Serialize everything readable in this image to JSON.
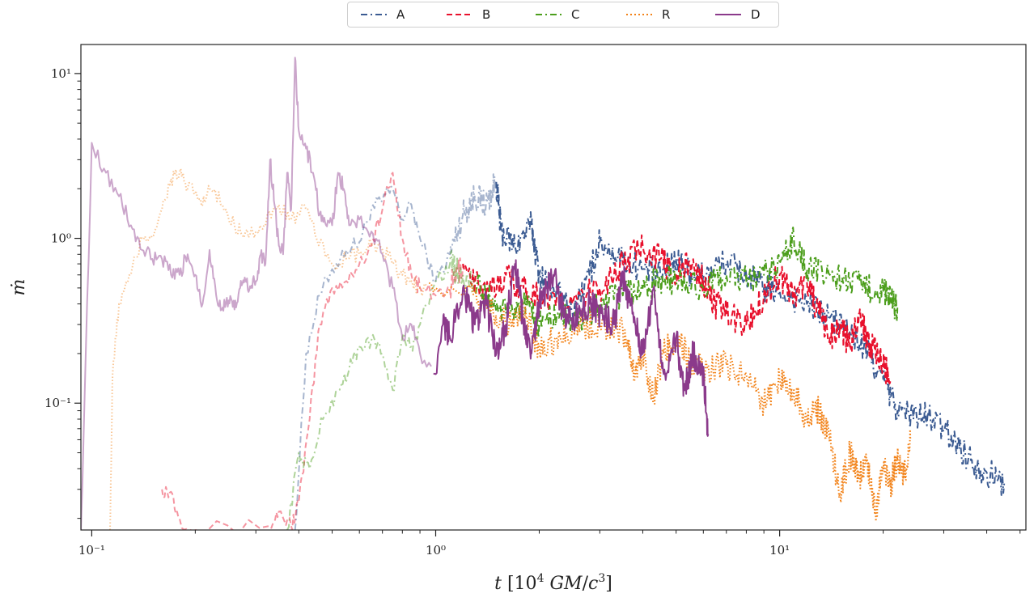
{
  "chart_data": {
    "type": "line",
    "title": "",
    "xlabel": "t [10^4 GM/c^3]",
    "ylabel": "ṁ",
    "x_scale": "log",
    "y_scale": "log",
    "xlim": [
      0.093,
      52
    ],
    "ylim": [
      0.017,
      15
    ],
    "x_major_ticks": [
      0.1,
      1,
      10
    ],
    "x_tick_labels": [
      "10⁻¹",
      "10⁰",
      "10¹"
    ],
    "y_major_ticks": [
      0.1,
      1,
      10
    ],
    "y_tick_labels": [
      "10⁻¹",
      "10⁰",
      "10¹"
    ],
    "grid": false,
    "legend_position": "top-center",
    "series": [
      {
        "name": "A",
        "color": "#3b5b92",
        "dash": "dashdot",
        "faded_until": 1.5,
        "points": [
          [
            0.39,
            0.017
          ],
          [
            0.42,
            0.2
          ],
          [
            0.46,
            0.45
          ],
          [
            0.5,
            0.65
          ],
          [
            0.55,
            0.85
          ],
          [
            0.6,
            0.95
          ],
          [
            0.65,
            1.5
          ],
          [
            0.7,
            1.7
          ],
          [
            0.75,
            2.0
          ],
          [
            0.8,
            1.3
          ],
          [
            0.85,
            1.6
          ],
          [
            0.9,
            1.0
          ],
          [
            1.0,
            0.55
          ],
          [
            1.1,
            0.8
          ],
          [
            1.2,
            1.4
          ],
          [
            1.3,
            1.8
          ],
          [
            1.4,
            1.6
          ],
          [
            1.5,
            2.2
          ],
          [
            1.55,
            1.1
          ],
          [
            1.7,
            0.9
          ],
          [
            1.9,
            1.2
          ],
          [
            2.0,
            0.6
          ],
          [
            2.2,
            0.5
          ],
          [
            2.5,
            0.35
          ],
          [
            2.8,
            0.6
          ],
          [
            3.0,
            0.95
          ],
          [
            3.5,
            0.75
          ],
          [
            4.0,
            0.65
          ],
          [
            4.5,
            0.6
          ],
          [
            5.0,
            0.75
          ],
          [
            5.5,
            0.62
          ],
          [
            6.0,
            0.6
          ],
          [
            7.0,
            0.72
          ],
          [
            8.0,
            0.6
          ],
          [
            9.0,
            0.5
          ],
          [
            10.0,
            0.48
          ],
          [
            12.0,
            0.4
          ],
          [
            14.0,
            0.33
          ],
          [
            16.0,
            0.27
          ],
          [
            18.0,
            0.2
          ],
          [
            20.0,
            0.14
          ],
          [
            22.0,
            0.09
          ],
          [
            25.0,
            0.085
          ],
          [
            28.0,
            0.08
          ],
          [
            32.0,
            0.06
          ],
          [
            36.0,
            0.045
          ],
          [
            40.0,
            0.038
          ],
          [
            45.0,
            0.033
          ]
        ]
      },
      {
        "name": "B",
        "color": "#e8112d",
        "dash": "dashed",
        "faded_until": 1.2,
        "points": [
          [
            0.16,
            0.03
          ],
          [
            0.17,
            0.029
          ],
          [
            0.18,
            0.02
          ],
          [
            0.2,
            0.017
          ],
          [
            0.33,
            0.018
          ],
          [
            0.35,
            0.022
          ],
          [
            0.38,
            0.018
          ],
          [
            0.4,
            0.025
          ],
          [
            0.43,
            0.08
          ],
          [
            0.46,
            0.3
          ],
          [
            0.5,
            0.5
          ],
          [
            0.55,
            0.55
          ],
          [
            0.6,
            0.7
          ],
          [
            0.65,
            0.9
          ],
          [
            0.7,
            1.5
          ],
          [
            0.75,
            2.5
          ],
          [
            0.8,
            1.0
          ],
          [
            0.85,
            0.6
          ],
          [
            0.9,
            0.5
          ],
          [
            1.0,
            0.45
          ],
          [
            1.1,
            0.5
          ],
          [
            1.2,
            0.7
          ],
          [
            1.4,
            0.45
          ],
          [
            1.6,
            0.6
          ],
          [
            1.8,
            0.5
          ],
          [
            2.0,
            0.45
          ],
          [
            2.5,
            0.4
          ],
          [
            3.0,
            0.5
          ],
          [
            3.5,
            0.7
          ],
          [
            4.0,
            0.9
          ],
          [
            4.5,
            0.75
          ],
          [
            5.0,
            0.6
          ],
          [
            5.5,
            0.7
          ],
          [
            6.0,
            0.55
          ],
          [
            6.5,
            0.4
          ],
          [
            7.0,
            0.35
          ],
          [
            8.0,
            0.3
          ],
          [
            9.0,
            0.45
          ],
          [
            10.0,
            0.6
          ],
          [
            11.0,
            0.45
          ],
          [
            12.0,
            0.55
          ],
          [
            13.0,
            0.35
          ],
          [
            14.0,
            0.25
          ],
          [
            15.0,
            0.3
          ],
          [
            16.0,
            0.22
          ],
          [
            17.0,
            0.35
          ],
          [
            18.0,
            0.25
          ],
          [
            19.0,
            0.2
          ],
          [
            20.0,
            0.17
          ],
          [
            21.0,
            0.14
          ]
        ]
      },
      {
        "name": "C",
        "color": "#4c9e1c",
        "dash": "dashdot",
        "faded_until": 1.3,
        "points": [
          [
            0.37,
            0.017
          ],
          [
            0.4,
            0.05
          ],
          [
            0.43,
            0.04
          ],
          [
            0.47,
            0.08
          ],
          [
            0.52,
            0.12
          ],
          [
            0.56,
            0.16
          ],
          [
            0.6,
            0.22
          ],
          [
            0.65,
            0.24
          ],
          [
            0.7,
            0.2
          ],
          [
            0.75,
            0.12
          ],
          [
            0.8,
            0.25
          ],
          [
            0.85,
            0.22
          ],
          [
            0.9,
            0.3
          ],
          [
            1.0,
            0.55
          ],
          [
            1.1,
            0.7
          ],
          [
            1.2,
            0.6
          ],
          [
            1.4,
            0.45
          ],
          [
            1.6,
            0.35
          ],
          [
            1.8,
            0.4
          ],
          [
            2.0,
            0.3
          ],
          [
            2.3,
            0.35
          ],
          [
            2.6,
            0.3
          ],
          [
            3.0,
            0.4
          ],
          [
            3.5,
            0.45
          ],
          [
            4.0,
            0.5
          ],
          [
            4.5,
            0.55
          ],
          [
            5.0,
            0.55
          ],
          [
            6.0,
            0.5
          ],
          [
            7.0,
            0.6
          ],
          [
            8.0,
            0.55
          ],
          [
            9.0,
            0.6
          ],
          [
            10.0,
            0.7
          ],
          [
            11.0,
            1.0
          ],
          [
            12.0,
            0.65
          ],
          [
            14.0,
            0.6
          ],
          [
            16.0,
            0.55
          ],
          [
            18.0,
            0.5
          ],
          [
            20.0,
            0.48
          ],
          [
            21.0,
            0.42
          ],
          [
            22.0,
            0.38
          ]
        ]
      },
      {
        "name": "R",
        "color": "#f28218",
        "dash": "dotted",
        "faded_until": 0.95,
        "points": [
          [
            0.113,
            0.017
          ],
          [
            0.115,
            0.15
          ],
          [
            0.12,
            0.4
          ],
          [
            0.13,
            0.6
          ],
          [
            0.14,
            1.0
          ],
          [
            0.15,
            1.05
          ],
          [
            0.16,
            1.5
          ],
          [
            0.17,
            2.3
          ],
          [
            0.18,
            2.5
          ],
          [
            0.19,
            2.0
          ],
          [
            0.2,
            1.9
          ],
          [
            0.21,
            1.6
          ],
          [
            0.22,
            2.0
          ],
          [
            0.24,
            1.6
          ],
          [
            0.26,
            1.2
          ],
          [
            0.28,
            1.1
          ],
          [
            0.3,
            1.1
          ],
          [
            0.32,
            1.2
          ],
          [
            0.35,
            1.6
          ],
          [
            0.38,
            1.3
          ],
          [
            0.42,
            1.5
          ],
          [
            0.45,
            1.0
          ],
          [
            0.5,
            0.7
          ],
          [
            0.55,
            0.75
          ],
          [
            0.6,
            0.8
          ],
          [
            0.65,
            0.9
          ],
          [
            0.7,
            0.85
          ],
          [
            0.75,
            0.7
          ],
          [
            0.8,
            0.6
          ],
          [
            0.85,
            0.55
          ],
          [
            0.9,
            0.5
          ],
          [
            1.0,
            0.5
          ],
          [
            1.2,
            0.45
          ],
          [
            1.4,
            0.4
          ],
          [
            1.6,
            0.3
          ],
          [
            1.8,
            0.35
          ],
          [
            2.0,
            0.22
          ],
          [
            2.3,
            0.25
          ],
          [
            2.6,
            0.3
          ],
          [
            3.0,
            0.3
          ],
          [
            3.5,
            0.28
          ],
          [
            3.8,
            0.15
          ],
          [
            4.0,
            0.2
          ],
          [
            4.3,
            0.11
          ],
          [
            4.6,
            0.2
          ],
          [
            5.0,
            0.25
          ],
          [
            5.5,
            0.18
          ],
          [
            6.0,
            0.16
          ],
          [
            7.0,
            0.17
          ],
          [
            8.0,
            0.15
          ],
          [
            9.0,
            0.1
          ],
          [
            10.0,
            0.14
          ],
          [
            11.0,
            0.12
          ],
          [
            12.0,
            0.08
          ],
          [
            13.0,
            0.09
          ],
          [
            14.0,
            0.06
          ],
          [
            15.0,
            0.028
          ],
          [
            16.0,
            0.05
          ],
          [
            17.0,
            0.035
          ],
          [
            18.0,
            0.045
          ],
          [
            19.0,
            0.022
          ],
          [
            20.0,
            0.04
          ],
          [
            21.0,
            0.032
          ],
          [
            22.0,
            0.045
          ],
          [
            23.0,
            0.035
          ],
          [
            24.0,
            0.06
          ]
        ]
      },
      {
        "name": "D",
        "color": "#8b3a8b",
        "dash": "solid",
        "faded_until": 0.98,
        "points": [
          [
            0.093,
            0.017
          ],
          [
            0.1,
            3.8
          ],
          [
            0.11,
            2.5
          ],
          [
            0.12,
            1.8
          ],
          [
            0.13,
            1.2
          ],
          [
            0.14,
            0.85
          ],
          [
            0.15,
            0.75
          ],
          [
            0.16,
            0.75
          ],
          [
            0.17,
            0.6
          ],
          [
            0.18,
            0.6
          ],
          [
            0.19,
            0.8
          ],
          [
            0.2,
            0.6
          ],
          [
            0.21,
            0.4
          ],
          [
            0.22,
            0.85
          ],
          [
            0.23,
            0.45
          ],
          [
            0.24,
            0.38
          ],
          [
            0.25,
            0.42
          ],
          [
            0.26,
            0.37
          ],
          [
            0.27,
            0.5
          ],
          [
            0.28,
            0.55
          ],
          [
            0.29,
            0.5
          ],
          [
            0.3,
            0.55
          ],
          [
            0.31,
            0.8
          ],
          [
            0.32,
            0.7
          ],
          [
            0.33,
            3.0
          ],
          [
            0.34,
            1.6
          ],
          [
            0.35,
            0.9
          ],
          [
            0.36,
            0.8
          ],
          [
            0.37,
            2.5
          ],
          [
            0.38,
            1.5
          ],
          [
            0.39,
            12.5
          ],
          [
            0.4,
            4.5
          ],
          [
            0.42,
            3.5
          ],
          [
            0.44,
            2.5
          ],
          [
            0.46,
            1.4
          ],
          [
            0.48,
            1.2
          ],
          [
            0.5,
            1.2
          ],
          [
            0.52,
            2.5
          ],
          [
            0.54,
            2.0
          ],
          [
            0.56,
            1.2
          ],
          [
            0.6,
            1.3
          ],
          [
            0.65,
            1.1
          ],
          [
            0.7,
            0.8
          ],
          [
            0.75,
            0.5
          ],
          [
            0.8,
            0.25
          ],
          [
            0.85,
            0.3
          ],
          [
            0.9,
            0.2
          ],
          [
            1.0,
            0.15
          ],
          [
            1.05,
            0.3
          ],
          [
            1.1,
            0.25
          ],
          [
            1.2,
            0.5
          ],
          [
            1.3,
            0.3
          ],
          [
            1.4,
            0.4
          ],
          [
            1.5,
            0.2
          ],
          [
            1.6,
            0.3
          ],
          [
            1.7,
            0.7
          ],
          [
            1.8,
            0.3
          ],
          [
            1.9,
            0.2
          ],
          [
            2.0,
            0.4
          ],
          [
            2.2,
            0.6
          ],
          [
            2.4,
            0.3
          ],
          [
            2.6,
            0.35
          ],
          [
            2.8,
            0.4
          ],
          [
            3.0,
            0.35
          ],
          [
            3.3,
            0.3
          ],
          [
            3.5,
            0.6
          ],
          [
            3.8,
            0.3
          ],
          [
            4.0,
            0.2
          ],
          [
            4.3,
            0.5
          ],
          [
            4.6,
            0.15
          ],
          [
            5.0,
            0.25
          ],
          [
            5.3,
            0.12
          ],
          [
            5.6,
            0.2
          ],
          [
            6.0,
            0.15
          ],
          [
            6.2,
            0.065
          ]
        ]
      }
    ]
  }
}
